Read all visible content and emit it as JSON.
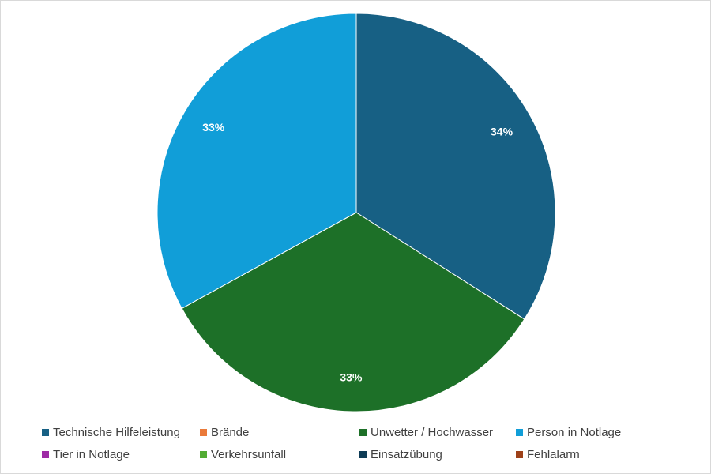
{
  "chart_data": {
    "type": "pie",
    "slices": [
      {
        "name": "Technische Hilfeleistung",
        "value": 34,
        "label": "34%",
        "color": "#176084"
      },
      {
        "name": "Brände",
        "value": 0,
        "label": "",
        "color": "#ea7a3a"
      },
      {
        "name": "Unwetter / Hochwasser",
        "value": 33,
        "label": "33%",
        "color": "#1d7028"
      },
      {
        "name": "Person in Notlage",
        "value": 33,
        "label": "33%",
        "color": "#119ed8"
      },
      {
        "name": "Tier in Notlage",
        "value": 0,
        "label": "",
        "color": "#9e2ba5"
      },
      {
        "name": "Verkehrsunfall",
        "value": 0,
        "label": "",
        "color": "#52ac34"
      },
      {
        "name": "Einsatzübung",
        "value": 0,
        "label": "",
        "color": "#0e3c56"
      },
      {
        "name": "Fehlalarm",
        "value": 0,
        "label": "",
        "color": "#9e4119"
      }
    ],
    "legend_position": "bottom",
    "title": ""
  }
}
